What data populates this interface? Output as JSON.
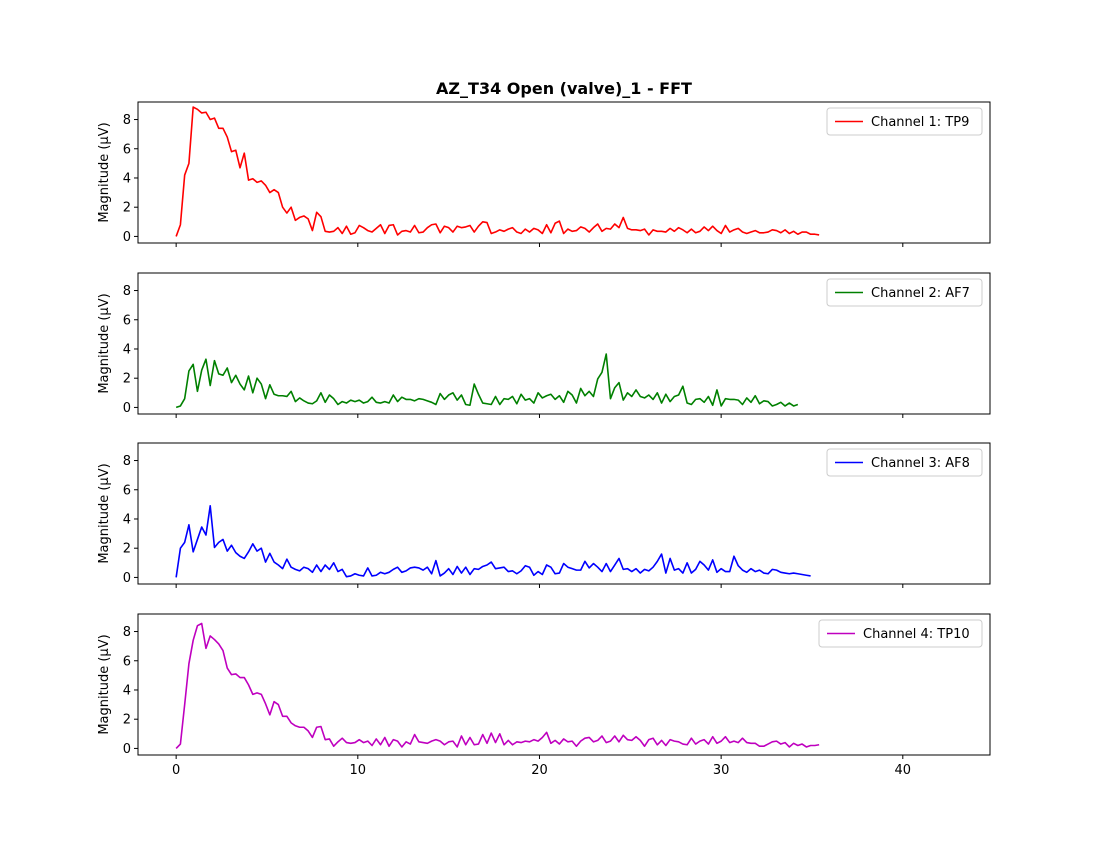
{
  "chart_data": {
    "type": "line",
    "title": "AZ_T34 Open (valve)_1 - FFT",
    "ylabel": "Magnitude ($\\mu$V)",
    "ylabel_display": "Magnitude (μV)",
    "xlabel": "",
    "xlim": [
      -2.1,
      44.8
    ],
    "ylim": [
      -0.45,
      9.2
    ],
    "xticks": [
      0,
      10,
      20,
      30,
      40
    ],
    "yticks": [
      0,
      2,
      4,
      6,
      8
    ],
    "x_step": 0.2344,
    "grid": false,
    "legend_placement": "upper right",
    "series": [
      {
        "name": "Channel 1: TP9",
        "color": "#ff0000",
        "values": [
          0.0,
          0.8,
          4.2,
          5.0,
          8.85,
          8.7,
          8.45,
          8.5,
          8.0,
          8.1,
          7.4,
          7.4,
          6.8,
          5.8,
          5.9,
          4.7,
          5.7,
          3.85,
          3.95,
          3.7,
          3.8,
          3.5,
          3.0,
          3.2,
          3.0,
          2.0,
          1.6,
          2.0,
          1.1,
          1.3,
          1.4,
          1.2,
          0.4,
          1.65,
          1.35,
          0.35,
          0.3,
          0.35,
          0.6,
          0.2,
          0.7,
          0.15,
          0.25,
          0.75,
          0.6,
          0.4,
          0.3,
          0.55,
          0.8,
          0.2,
          0.75,
          0.8,
          0.1,
          0.35,
          0.4,
          0.3,
          0.75,
          0.25,
          0.3,
          0.6,
          0.8,
          0.85,
          0.25,
          0.7,
          0.6,
          0.3,
          0.7,
          0.6,
          0.65,
          0.75,
          0.3,
          0.7,
          1.0,
          0.95,
          0.2,
          0.3,
          0.45,
          0.35,
          0.5,
          0.6,
          0.3,
          0.2,
          0.5,
          0.3,
          0.55,
          0.45,
          0.2,
          0.8,
          0.25,
          0.9,
          1.05,
          0.2,
          0.5,
          0.35,
          0.4,
          0.65,
          0.55,
          0.3,
          0.6,
          0.85,
          0.35,
          0.55,
          0.5,
          0.85,
          0.6,
          1.3,
          0.55,
          0.45,
          0.45,
          0.4,
          0.5,
          0.1,
          0.45,
          0.35,
          0.35,
          0.3,
          0.55,
          0.35,
          0.6,
          0.45,
          0.25,
          0.5,
          0.25,
          0.35,
          0.65,
          0.4,
          0.7,
          0.4,
          0.2,
          0.75,
          0.3,
          0.45,
          0.55,
          0.3,
          0.2,
          0.3,
          0.4,
          0.25,
          0.25,
          0.3,
          0.45,
          0.4,
          0.25,
          0.45,
          0.2,
          0.35,
          0.15,
          0.3,
          0.3,
          0.15,
          0.15,
          0.1
        ]
      },
      {
        "name": "Channel 2: AF7",
        "color": "#008000",
        "values": [
          0.0,
          0.1,
          0.6,
          2.5,
          2.95,
          1.1,
          2.55,
          3.3,
          1.5,
          3.2,
          2.3,
          2.2,
          2.7,
          1.7,
          2.2,
          1.6,
          1.2,
          2.15,
          1.0,
          2.0,
          1.6,
          0.6,
          1.55,
          0.9,
          0.8,
          0.8,
          0.75,
          1.1,
          0.4,
          0.65,
          0.45,
          0.3,
          0.25,
          0.45,
          1.0,
          0.35,
          0.85,
          0.6,
          0.2,
          0.4,
          0.3,
          0.5,
          0.4,
          0.5,
          0.3,
          0.4,
          0.7,
          0.35,
          0.3,
          0.4,
          0.3,
          0.85,
          0.4,
          0.7,
          0.55,
          0.55,
          0.45,
          0.6,
          0.55,
          0.45,
          0.35,
          0.2,
          0.95,
          0.55,
          0.85,
          1.0,
          0.5,
          0.85,
          0.2,
          0.15,
          1.6,
          0.9,
          0.3,
          0.25,
          0.2,
          0.75,
          0.2,
          0.6,
          0.55,
          0.75,
          0.25,
          0.9,
          0.5,
          0.6,
          0.3,
          1.0,
          0.65,
          0.8,
          0.9,
          0.55,
          0.8,
          0.35,
          1.1,
          0.85,
          0.3,
          1.3,
          0.8,
          1.1,
          0.75,
          1.95,
          2.4,
          3.65,
          0.6,
          1.35,
          1.7,
          0.5,
          1.0,
          0.75,
          1.2,
          0.75,
          0.65,
          0.85,
          0.55,
          1.0,
          0.3,
          0.9,
          0.4,
          0.75,
          0.85,
          1.45,
          0.3,
          0.2,
          0.55,
          0.6,
          0.35,
          0.75,
          0.15,
          1.2,
          0.1,
          0.6,
          0.55,
          0.55,
          0.5,
          0.2,
          0.65,
          0.35,
          0.8,
          0.25,
          0.45,
          0.4,
          0.1,
          0.2,
          0.35,
          0.1,
          0.3,
          0.1,
          0.2
        ]
      },
      {
        "name": "Channel 3: AF8",
        "color": "#0000ff",
        "values": [
          0.0,
          2.0,
          2.4,
          3.6,
          1.75,
          2.6,
          3.45,
          2.9,
          4.9,
          2.05,
          2.4,
          2.6,
          1.8,
          2.2,
          1.7,
          1.45,
          1.3,
          1.75,
          2.3,
          1.8,
          2.0,
          1.05,
          1.65,
          1.05,
          0.85,
          0.6,
          1.25,
          0.7,
          0.55,
          0.45,
          0.7,
          0.6,
          0.35,
          0.85,
          0.4,
          0.85,
          0.55,
          1.0,
          0.4,
          0.55,
          0.05,
          0.1,
          0.25,
          0.15,
          0.1,
          0.65,
          0.1,
          0.15,
          0.35,
          0.25,
          0.35,
          0.55,
          0.7,
          0.35,
          0.45,
          0.65,
          0.7,
          0.65,
          0.5,
          0.7,
          0.25,
          1.15,
          0.1,
          0.3,
          0.6,
          0.2,
          0.75,
          0.3,
          0.7,
          0.2,
          0.6,
          0.55,
          0.75,
          0.85,
          1.05,
          0.6,
          0.65,
          0.7,
          0.4,
          0.45,
          0.25,
          0.45,
          0.8,
          0.7,
          0.15,
          0.4,
          0.2,
          0.85,
          0.7,
          0.25,
          0.3,
          0.95,
          0.7,
          0.6,
          0.5,
          0.5,
          1.1,
          0.65,
          0.95,
          0.7,
          0.4,
          0.95,
          0.4,
          0.85,
          1.3,
          0.55,
          0.6,
          0.4,
          0.6,
          0.3,
          0.55,
          0.45,
          0.7,
          1.1,
          1.6,
          0.3,
          1.3,
          0.5,
          0.6,
          0.3,
          1.0,
          0.3,
          0.55,
          1.1,
          0.85,
          0.5,
          1.2,
          0.35,
          0.6,
          0.4,
          0.4,
          1.45,
          0.8,
          0.5,
          0.35,
          0.6,
          0.4,
          0.5,
          0.3,
          0.25,
          0.55,
          0.5,
          0.35,
          0.3,
          0.25,
          0.3,
          0.25,
          0.2,
          0.15,
          0.1
        ]
      },
      {
        "name": "Channel 4: TP10",
        "color": "#bf00bf",
        "values": [
          0.0,
          0.3,
          3.0,
          5.8,
          7.4,
          8.4,
          8.55,
          6.85,
          7.7,
          7.45,
          7.15,
          6.7,
          5.5,
          5.05,
          5.1,
          4.85,
          4.85,
          4.35,
          3.7,
          3.8,
          3.7,
          3.05,
          2.3,
          3.2,
          3.0,
          2.2,
          2.2,
          1.75,
          1.55,
          1.45,
          1.45,
          1.2,
          0.75,
          1.45,
          1.5,
          0.6,
          0.65,
          0.15,
          0.45,
          0.7,
          0.4,
          0.35,
          0.4,
          0.6,
          0.4,
          0.5,
          0.2,
          0.65,
          0.25,
          0.75,
          0.15,
          0.6,
          0.5,
          0.1,
          0.45,
          0.3,
          0.95,
          0.45,
          0.4,
          0.35,
          0.5,
          0.6,
          0.5,
          0.25,
          0.45,
          0.5,
          0.1,
          0.85,
          0.25,
          0.75,
          0.25,
          0.3,
          0.95,
          0.35,
          1.05,
          0.4,
          1.0,
          0.25,
          0.55,
          0.25,
          0.45,
          0.4,
          0.5,
          0.45,
          0.6,
          0.5,
          0.75,
          1.1,
          0.35,
          0.55,
          0.3,
          0.65,
          0.45,
          0.5,
          0.15,
          0.5,
          0.7,
          0.75,
          0.45,
          0.55,
          0.85,
          0.4,
          0.5,
          0.85,
          0.45,
          0.9,
          0.6,
          0.55,
          0.8,
          0.55,
          0.15,
          0.6,
          0.7,
          0.25,
          0.55,
          0.2,
          0.6,
          0.5,
          0.45,
          0.3,
          0.25,
          0.7,
          0.3,
          0.5,
          0.6,
          0.3,
          0.8,
          0.35,
          0.5,
          0.8,
          0.4,
          0.5,
          0.4,
          0.7,
          0.4,
          0.35,
          0.35,
          0.15,
          0.15,
          0.3,
          0.45,
          0.5,
          0.3,
          0.4,
          0.1,
          0.35,
          0.2,
          0.3,
          0.1,
          0.2,
          0.2,
          0.25
        ]
      }
    ]
  }
}
